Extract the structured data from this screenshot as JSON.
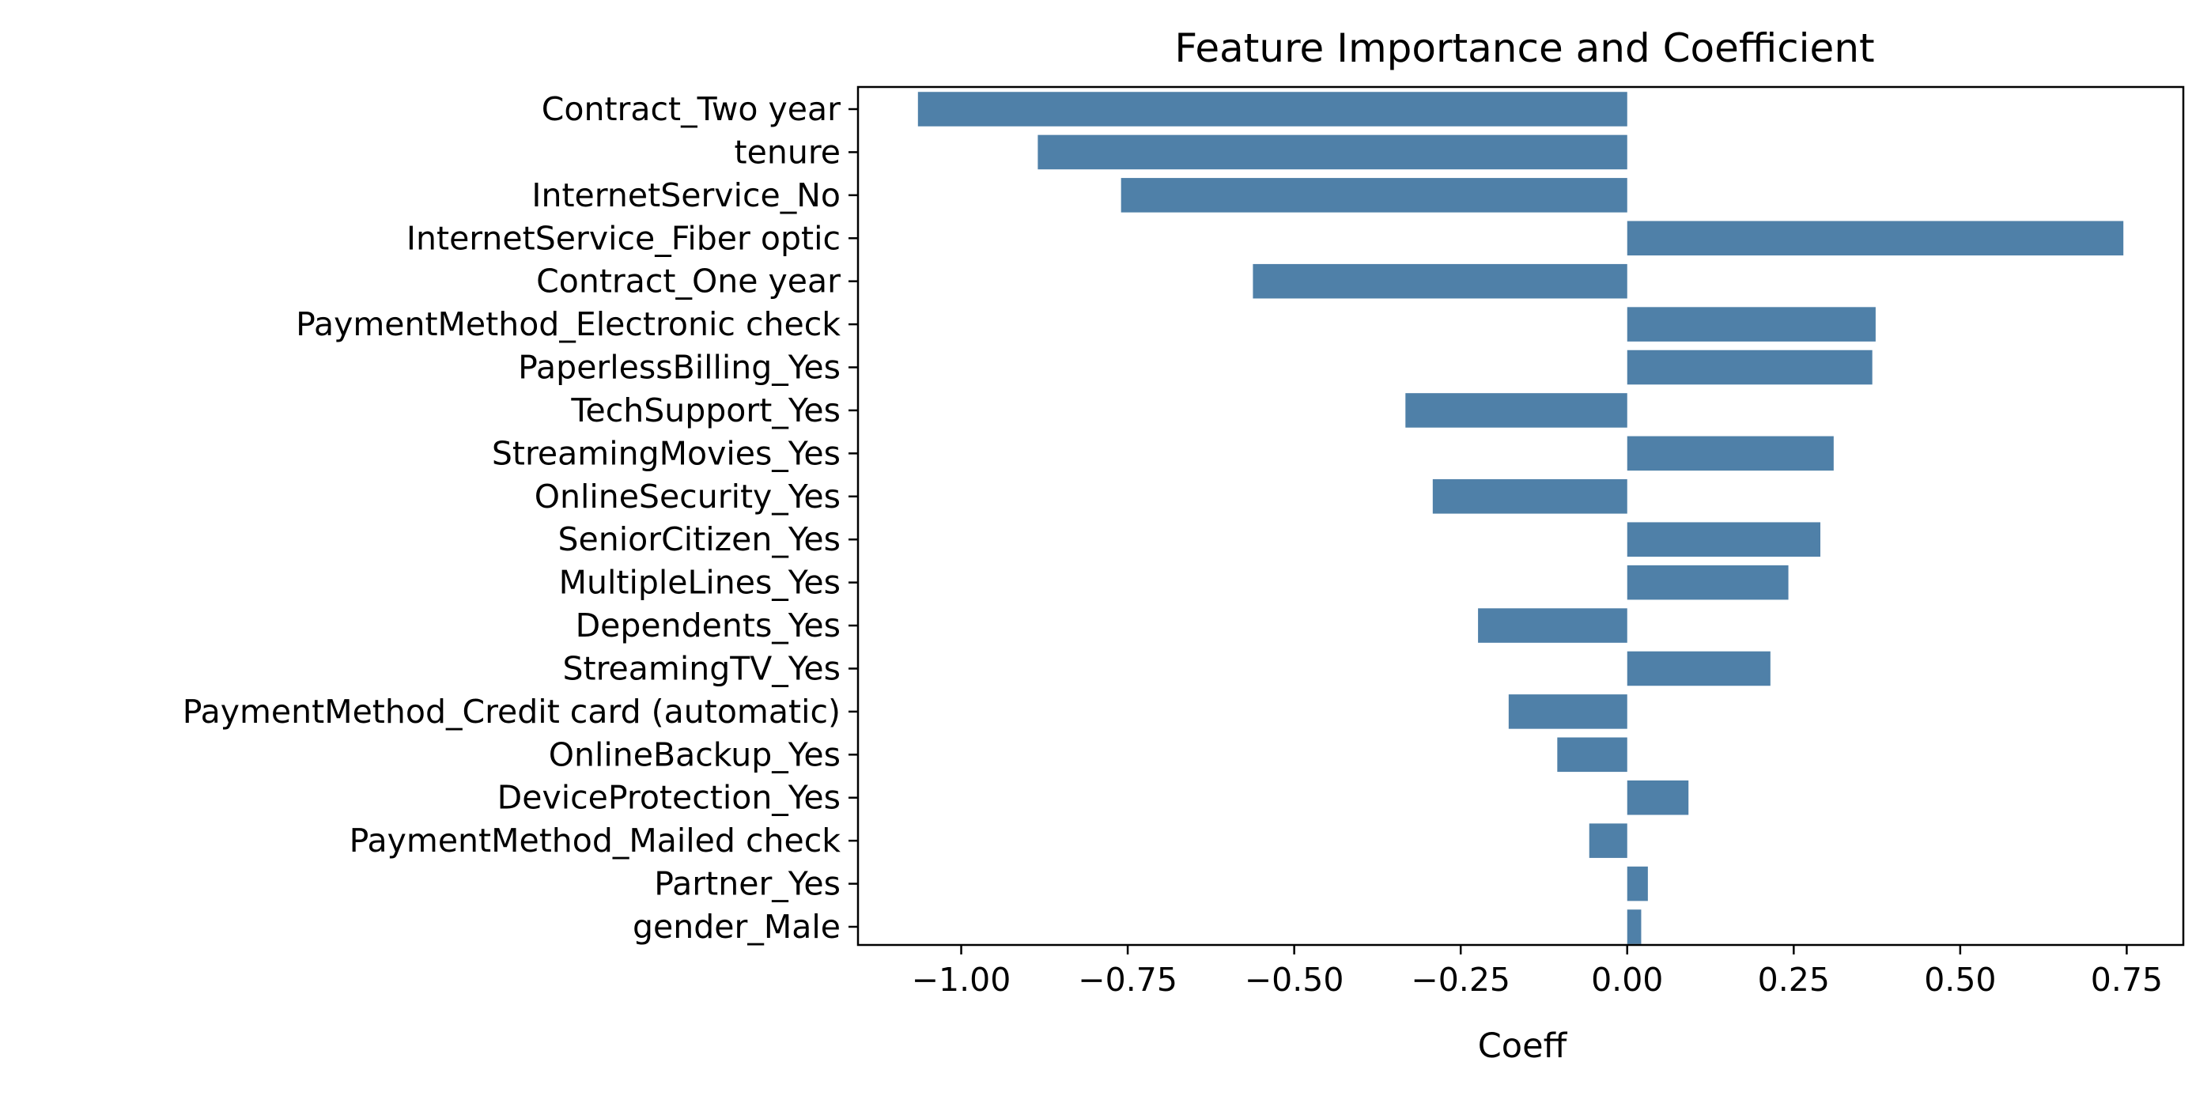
{
  "chart_data": {
    "type": "bar",
    "orientation": "horizontal",
    "title": "Feature Importance and Coefficient",
    "xlabel": "Coeff",
    "ylabel": "",
    "xlim": [
      -1.155,
      0.835
    ],
    "xticks": [
      -1.0,
      -0.75,
      -0.5,
      -0.25,
      0.0,
      0.25,
      0.5,
      0.75
    ],
    "xtick_labels": [
      "−1.00",
      "−0.75",
      "−0.50",
      "−0.25",
      "0.00",
      "0.25",
      "0.50",
      "0.75"
    ],
    "categories": [
      "Contract_Two year",
      "tenure",
      "InternetService_No",
      "InternetService_Fiber optic",
      "Contract_One year",
      "PaymentMethod_Electronic check",
      "PaperlessBilling_Yes",
      "TechSupport_Yes",
      "StreamingMovies_Yes",
      "OnlineSecurity_Yes",
      "SeniorCitizen_Yes",
      "MultipleLines_Yes",
      "Dependents_Yes",
      "StreamingTV_Yes",
      "PaymentMethod_Credit card (automatic)",
      "OnlineBackup_Yes",
      "DeviceProtection_Yes",
      "PaymentMethod_Mailed check",
      "Partner_Yes",
      "gender_Male"
    ],
    "values": [
      -1.065,
      -0.885,
      -0.76,
      0.745,
      -0.562,
      0.373,
      0.368,
      -0.333,
      0.31,
      -0.292,
      0.29,
      0.242,
      -0.224,
      0.215,
      -0.178,
      -0.105,
      0.092,
      -0.057,
      0.031,
      0.021
    ],
    "bar_color": "#4f80a8",
    "grid": false,
    "legend": "none"
  }
}
